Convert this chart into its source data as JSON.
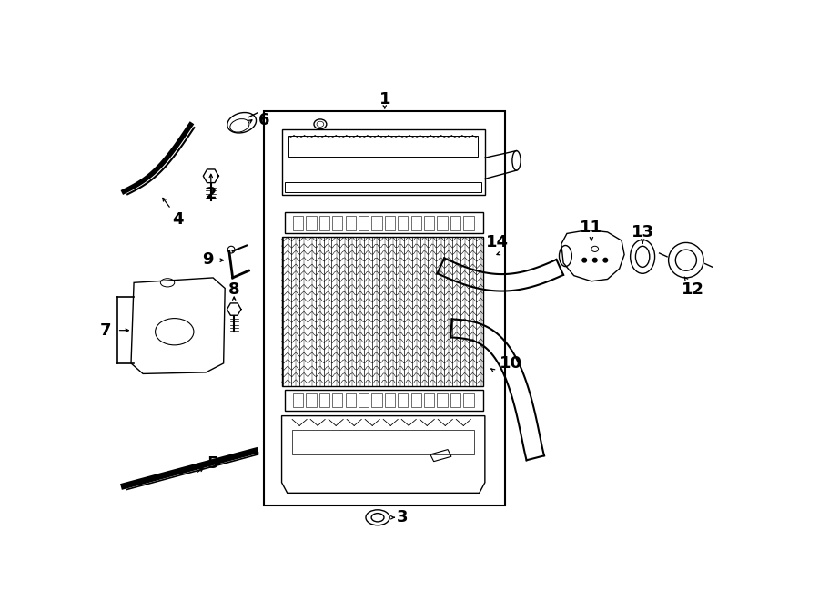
{
  "bg_color": "#ffffff",
  "line_color": "#000000",
  "fig_width": 9.0,
  "fig_height": 6.61,
  "lw": 1.0
}
